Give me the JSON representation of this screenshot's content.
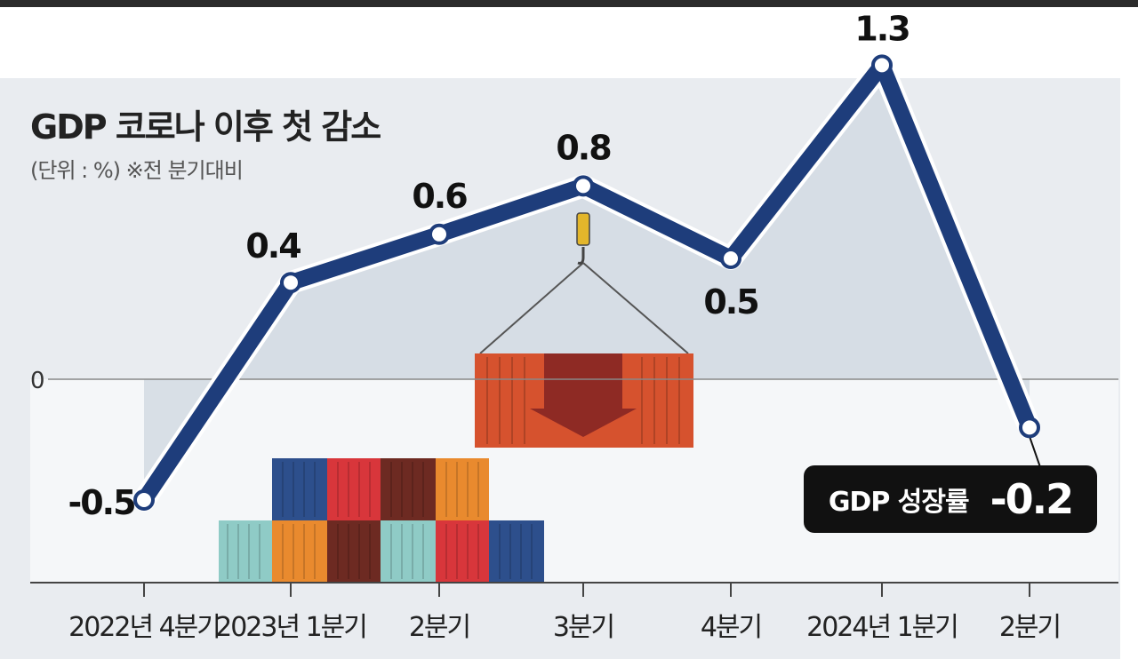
{
  "title": "GDP 코로나 이후 첫 감소",
  "subtitle": "(단위 : %)  ※전 분기대비",
  "zero_label": "0",
  "callout": {
    "label": "GDP 성장률",
    "value": "-0.2"
  },
  "colors": {
    "line": "#1e3d7b",
    "area_fill": "#d2dae3",
    "background": "#e9ecf0",
    "callout_bg": "#111111"
  },
  "chart_data": {
    "type": "line",
    "categories": [
      "2022년 4분기",
      "2023년 1분기",
      "2분기",
      "3분기",
      "4분기",
      "2024년 1분기",
      "2분기"
    ],
    "values": [
      -0.5,
      0.4,
      0.6,
      0.8,
      0.5,
      1.3,
      -0.2
    ],
    "value_labels": [
      "-0.5",
      "0.4",
      "0.6",
      "0.8",
      "0.5",
      "1.3",
      ""
    ],
    "title": "GDP 코로나 이후 첫 감소",
    "ylabel": "",
    "xlabel": "",
    "grid": false,
    "legend": "none"
  }
}
